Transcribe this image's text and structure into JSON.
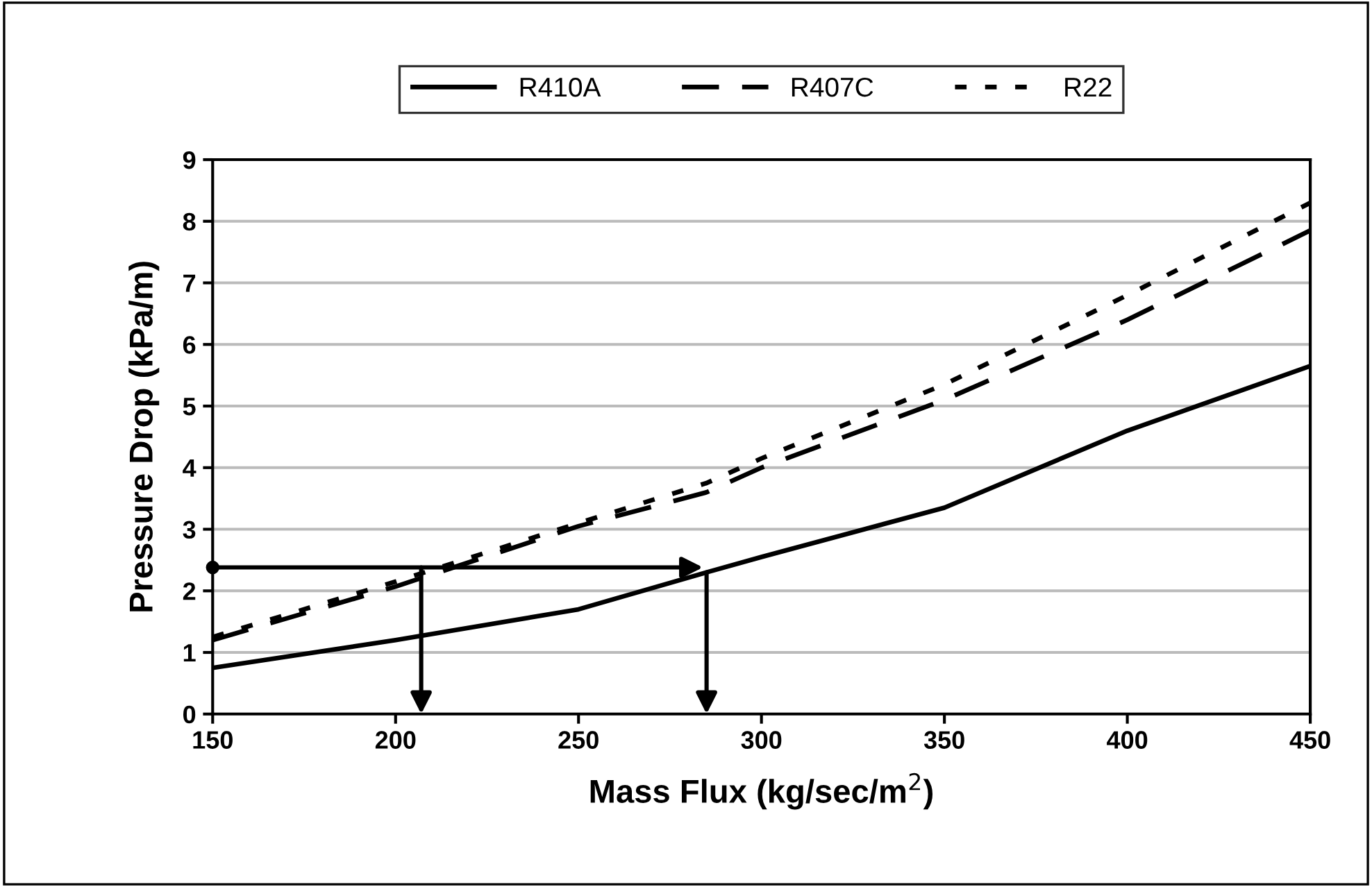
{
  "chart_data": {
    "type": "line",
    "xlabel": "Mass Flux (kg/sec/m$^{2}$)",
    "ylabel": "Pressure Drop (kPa/m)",
    "x": [
      150,
      200,
      250,
      285,
      300,
      350,
      400,
      450
    ],
    "series": [
      {
        "name": "R410A",
        "color": "#000000",
        "line_style": "solid",
        "values": [
          0.75,
          1.2,
          1.7,
          2.3,
          2.55,
          3.35,
          4.6,
          5.65
        ]
      },
      {
        "name": "R407C",
        "color": "#000000",
        "line_style": "dashed",
        "values": [
          1.2,
          2.07,
          3.05,
          3.6,
          4.0,
          5.1,
          6.4,
          7.85
        ]
      },
      {
        "name": "R22",
        "color": "#000000",
        "line_style": "dotted",
        "values": [
          1.25,
          2.15,
          3.1,
          3.75,
          4.15,
          5.35,
          6.8,
          8.3
        ]
      }
    ],
    "xlim": [
      150,
      450
    ],
    "xticks": [
      150,
      200,
      250,
      300,
      350,
      400,
      450
    ],
    "ylim": [
      0,
      9
    ],
    "yticks": [
      0,
      1,
      2,
      3,
      4,
      5,
      6,
      7,
      8,
      9
    ],
    "grid": "y",
    "legend": "top",
    "marker": "none"
  }
}
